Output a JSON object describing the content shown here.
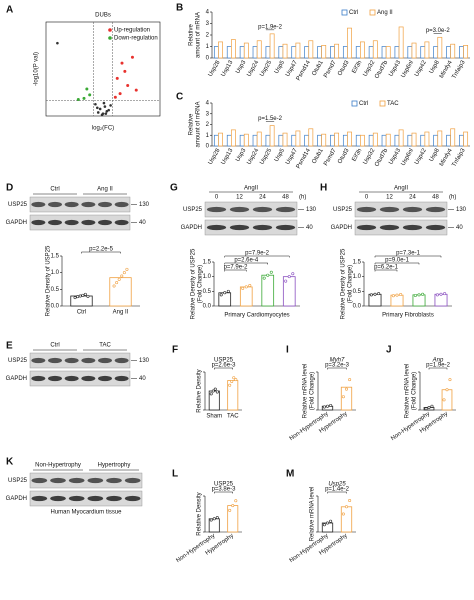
{
  "panels": {
    "A": {
      "letter": "A",
      "title": "DUBs",
      "xlabel": "log₂(FC)",
      "ylabel": "-log10(P val)",
      "xlim": [
        -6,
        6
      ],
      "ylim": [
        0,
        8
      ],
      "cutoff_x": [
        -1,
        1
      ],
      "cutoff_y": [
        1.3
      ],
      "series": [
        {
          "name": "Up-regulation",
          "color": "#e8322e",
          "x": [
            1.5,
            2.0,
            2.6,
            3.1,
            1.8,
            2.3,
            3.5,
            1.3
          ],
          "y": [
            3.2,
            4.5,
            2.6,
            5.0,
            1.9,
            3.8,
            2.2,
            1.6
          ]
        },
        {
          "name": "Down-regulation",
          "color": "#3aa935",
          "x": [
            -1.4,
            -2.0,
            -1.7,
            -2.6
          ],
          "y": [
            1.8,
            1.5,
            2.3,
            1.4
          ]
        }
      ],
      "other": {
        "color": "#333",
        "x": [
          -0.5,
          -0.3,
          0,
          0.2,
          0.4,
          0.6,
          -0.8,
          0.8,
          0.1,
          -0.1,
          0.3,
          -0.6,
          -4.8
        ],
        "y": [
          0.3,
          0.6,
          0.2,
          0.8,
          0.4,
          0.5,
          1.0,
          0.9,
          1.1,
          0.1,
          0.2,
          0.7,
          6.2
        ]
      }
    },
    "B": {
      "letter": "B",
      "ylabel": [
        "Relative",
        "amount of mRNA"
      ],
      "ylim": [
        0,
        4
      ],
      "yticks": [
        0,
        1,
        2,
        3,
        4
      ],
      "categories": [
        "Usp28",
        "Usp13",
        "Usp3",
        "Usp24",
        "Usp25",
        "Usp5",
        "Usp47",
        "Psmd14",
        "Otub1",
        "Psmd7",
        "Otud3",
        "Eif3h",
        "Usp32",
        "Otud7b",
        "Usp43",
        "Usp6nl",
        "Usp42",
        "Usp8",
        "Mindy4",
        "Tnfaip3"
      ],
      "series": [
        {
          "name": "Ctrl",
          "color": "#3a7dc9",
          "values": [
            1,
            1,
            1,
            1,
            1,
            1,
            1,
            1,
            1,
            1,
            1,
            1,
            1,
            1,
            1,
            1,
            1,
            1,
            1,
            1
          ]
        },
        {
          "name": "Ang II",
          "color": "#f0a040",
          "values": [
            1.4,
            1.6,
            1.3,
            1.5,
            2.1,
            1.2,
            1.3,
            1.5,
            1.1,
            1.2,
            2.6,
            1.4,
            1.5,
            1.0,
            2.7,
            1.3,
            1.4,
            1.8,
            1.2,
            1.1
          ]
        }
      ],
      "annotations": [
        "p=1.9e-2",
        "p=3.0e-2"
      ]
    },
    "C": {
      "letter": "C",
      "ylabel": [
        "Relative",
        "amount of mRNA"
      ],
      "ylim": [
        0,
        4
      ],
      "yticks": [
        0,
        1,
        2,
        3,
        4
      ],
      "categories": [
        "Usp28",
        "Usp13",
        "Usp3",
        "Usp24",
        "Usp25",
        "Usp5",
        "Usp47",
        "Psmd14",
        "Otub1",
        "Psmd7",
        "Otud3",
        "Eif3h",
        "Usp32",
        "Otud7b",
        "Usp43",
        "Usp6nl",
        "Usp42",
        "Usp8",
        "Mindy4",
        "Tnfaip3"
      ],
      "series": [
        {
          "name": "Ctrl",
          "color": "#3a7dc9",
          "values": [
            1,
            1,
            1,
            1,
            1,
            1,
            1,
            1,
            1,
            1,
            1,
            1,
            1,
            1,
            1,
            1,
            1,
            1,
            1,
            1
          ]
        },
        {
          "name": "TAC",
          "color": "#f0a040",
          "values": [
            1.2,
            1.5,
            1.1,
            1.3,
            1.9,
            1.2,
            1.4,
            1.6,
            1.1,
            1.2,
            1.3,
            1.0,
            1.2,
            1.1,
            1.5,
            1.2,
            1.3,
            1.4,
            1.6,
            1.3
          ]
        }
      ],
      "annotations": [
        "p=1.5e-2"
      ]
    },
    "D": {
      "letter": "D",
      "blot": {
        "groups": [
          "Ctrl",
          "Ang II"
        ],
        "rows": [
          "USP25",
          "GAPDH"
        ],
        "markers": [
          130,
          40
        ]
      },
      "ylabel": [
        "Relative Density of USP25"
      ],
      "ylim": [
        0,
        1.5
      ],
      "yticks": [
        {
          "value": 0,
          "label": "0.0"
        },
        {
          "value": 0.5,
          "label": "0.5"
        },
        {
          "value": 1,
          "label": "1.0"
        },
        {
          "value": 1.5,
          "label": "1.5"
        }
      ],
      "categories": [
        "Ctrl",
        "Ang II"
      ],
      "colors": [
        "#222",
        "#f0a040"
      ],
      "values": [
        0.3,
        0.85
      ],
      "points": [
        [
          0.25,
          0.28,
          0.3,
          0.32,
          0.35,
          0.29
        ],
        [
          0.6,
          0.7,
          0.8,
          0.9,
          1.0,
          1.1
        ]
      ],
      "annotations": [
        "p=2.2e-5"
      ]
    },
    "E": {
      "letter": "E",
      "blot": {
        "groups": [
          "Ctrl",
          "TAC"
        ],
        "rows": [
          "USP25",
          "GAPDH"
        ],
        "markers": [
          130,
          40
        ]
      }
    },
    "F": {
      "letter": "F",
      "title": "USP25",
      "ylabel": [
        "Relative Density"
      ],
      "ylim": [
        0,
        2
      ],
      "categories": [
        "Sham",
        "TAC"
      ],
      "colors": [
        "#222",
        "#f0a040"
      ],
      "values": [
        1.0,
        1.55
      ],
      "points": [
        [
          0.85,
          1.0,
          1.1,
          0.95
        ],
        [
          1.3,
          1.5,
          1.7,
          1.6
        ]
      ],
      "annotations": [
        "p=2.6e-3"
      ]
    },
    "G": {
      "letter": "G",
      "blot": {
        "header": "AngII",
        "lanes": [
          "0",
          "12",
          "24",
          "48"
        ],
        "unit": "(h)",
        "rows": [
          "USP25",
          "GAPDH"
        ],
        "markers": [
          130,
          40
        ]
      },
      "ylabel": [
        "Relative Density of USP25",
        "(Fold Change)"
      ],
      "ylim": [
        0,
        1.5
      ],
      "yticks": [
        {
          "value": 0,
          "label": "0.0"
        },
        {
          "value": 0.5,
          "label": "0.5"
        },
        {
          "value": 1,
          "label": "1.0"
        },
        {
          "value": 1.5,
          "label": "1.5"
        }
      ],
      "colors": [
        "#222",
        "#f0a040",
        "#3aa935",
        "#8a4fc0"
      ],
      "values": [
        0.45,
        0.65,
        1.05,
        1.0
      ],
      "points": [
        [
          0.38,
          0.45,
          0.5
        ],
        [
          0.6,
          0.65,
          0.7
        ],
        [
          0.95,
          1.05,
          1.15
        ],
        [
          0.85,
          1.0,
          1.1
        ]
      ],
      "annotations": [
        "p=7.9e-2",
        "p=2.6e-4",
        "p=7.9e-2"
      ],
      "xlabel": "Primary Cardiomyocytes"
    },
    "H": {
      "letter": "H",
      "blot": {
        "header": "AngII",
        "lanes": [
          "0",
          "12",
          "24",
          "48"
        ],
        "unit": "(h)",
        "rows": [
          "USP25",
          "GAPDH"
        ],
        "markers": [
          130,
          40
        ]
      },
      "ylabel": [
        "Relative Density of USP25",
        "(Fold Change)"
      ],
      "ylim": [
        0,
        1.5
      ],
      "yticks": [
        {
          "value": 0,
          "label": "0.0"
        },
        {
          "value": 0.5,
          "label": "0.5"
        },
        {
          "value": 1,
          "label": "1.0"
        },
        {
          "value": 1.5,
          "label": "1.5"
        }
      ],
      "colors": [
        "#222",
        "#f0a040",
        "#3aa935",
        "#8a4fc0"
      ],
      "values": [
        0.4,
        0.37,
        0.38,
        0.4
      ],
      "points": [
        [
          0.38,
          0.4,
          0.42
        ],
        [
          0.35,
          0.37,
          0.39
        ],
        [
          0.36,
          0.38,
          0.4
        ],
        [
          0.38,
          0.4,
          0.42
        ]
      ],
      "annotations": [
        "p=7.3e-1",
        "p=9.0e-1",
        "p=6.2e-1"
      ],
      "xlabel": "Primary Fibroblasts"
    },
    "I": {
      "letter": "I",
      "title": "Myh7",
      "italic": true,
      "ylabel": [
        "Relative mRNA level",
        "(Fold Change)"
      ],
      "ylim": [
        0,
        10
      ],
      "categories": [
        "Non-Hypertrophy",
        "Hypertrophy"
      ],
      "colors": [
        "#222",
        "#f0a040"
      ],
      "values": [
        1.0,
        6.0
      ],
      "points": [
        [
          0.8,
          1.0,
          1.2
        ],
        [
          3.5,
          5.5,
          8.0
        ]
      ],
      "annotations": [
        "p=3.2e-3"
      ]
    },
    "J": {
      "letter": "J",
      "title": "Anp",
      "italic": true,
      "ylabel": [
        "Relative mRNA level",
        "(Fold Change)"
      ],
      "ylim": [
        0,
        15
      ],
      "categories": [
        "Non-Hypertrophy",
        "Hypertrophy"
      ],
      "colors": [
        "#222",
        "#f0a040"
      ],
      "values": [
        1,
        8
      ],
      "points": [
        [
          0.5,
          1,
          1.5
        ],
        [
          4,
          8,
          12
        ]
      ],
      "annotations": [
        "p=1.9e-2"
      ]
    },
    "K": {
      "letter": "K",
      "blot": {
        "groups": [
          "Non-Hypertrophy",
          "Hypertrophy"
        ],
        "rows": [
          "USP25",
          "GAPDH"
        ],
        "caption": "Human Myocardium tissue"
      }
    },
    "L": {
      "letter": "L",
      "title": "USP25",
      "ylabel": [
        "Relative Density"
      ],
      "ylim": [
        0,
        1.5
      ],
      "categories": [
        "Non-Hypertrophy",
        "Hypertrophy"
      ],
      "colors": [
        "#222",
        "#f0a040"
      ],
      "values": [
        0.55,
        1.1
      ],
      "points": [
        [
          0.5,
          0.55,
          0.6
        ],
        [
          0.9,
          1.1,
          1.3
        ]
      ],
      "annotations": [
        "p=3.8e-3"
      ]
    },
    "M": {
      "letter": "M",
      "title": "Usp25",
      "italic": true,
      "ylabel": [
        "Relative mRNA level"
      ],
      "ylim": [
        0,
        4
      ],
      "categories": [
        "Non-Hypertrophy",
        "Hypertrophy"
      ],
      "colors": [
        "#222",
        "#f0a040"
      ],
      "values": [
        1,
        2.8
      ],
      "points": [
        [
          0.8,
          1,
          1.2
        ],
        [
          2,
          2.8,
          3.5
        ]
      ],
      "annotations": [
        "p=1.4e-2"
      ]
    }
  }
}
